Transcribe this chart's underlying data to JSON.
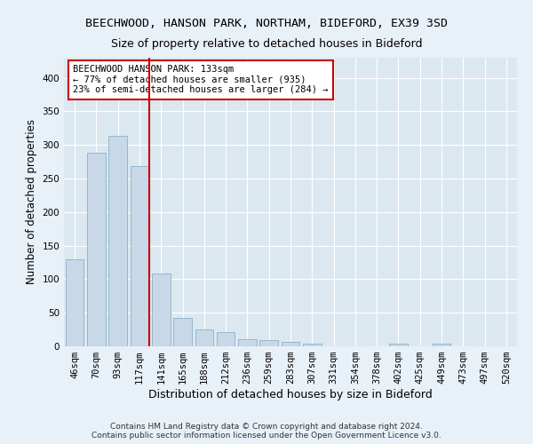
{
  "title1": "BEECHWOOD, HANSON PARK, NORTHAM, BIDEFORD, EX39 3SD",
  "title2": "Size of property relative to detached houses in Bideford",
  "xlabel": "Distribution of detached houses by size in Bideford",
  "ylabel": "Number of detached properties",
  "footer1": "Contains HM Land Registry data © Crown copyright and database right 2024.",
  "footer2": "Contains public sector information licensed under the Open Government Licence v3.0.",
  "categories": [
    "46sqm",
    "70sqm",
    "93sqm",
    "117sqm",
    "141sqm",
    "165sqm",
    "188sqm",
    "212sqm",
    "236sqm",
    "259sqm",
    "283sqm",
    "307sqm",
    "331sqm",
    "354sqm",
    "378sqm",
    "402sqm",
    "425sqm",
    "449sqm",
    "473sqm",
    "497sqm",
    "520sqm"
  ],
  "values": [
    130,
    288,
    313,
    268,
    108,
    42,
    25,
    21,
    10,
    9,
    7,
    4,
    0,
    0,
    0,
    4,
    0,
    4,
    0,
    0,
    0
  ],
  "bar_color": "#c8d8e8",
  "bar_edge_color": "#8ab0c8",
  "bar_linewidth": 0.6,
  "vline_color": "#cc0000",
  "vline_x": 3.45,
  "box_edge_color": "#cc0000",
  "annotation_text": "BEECHWOOD HANSON PARK: 133sqm\n← 77% of detached houses are smaller (935)\n23% of semi-detached houses are larger (284) →",
  "bg_color": "#dce8f0",
  "grid_color": "#ffffff",
  "fig_bg_color": "#e8f0f8",
  "ylim": [
    0,
    430
  ],
  "yticks": [
    0,
    50,
    100,
    150,
    200,
    250,
    300,
    350,
    400
  ],
  "title1_fontsize": 9.5,
  "title2_fontsize": 9,
  "xlabel_fontsize": 9,
  "ylabel_fontsize": 8.5,
  "tick_fontsize": 7.5,
  "annotation_fontsize": 7.5,
  "footer_fontsize": 6.5
}
